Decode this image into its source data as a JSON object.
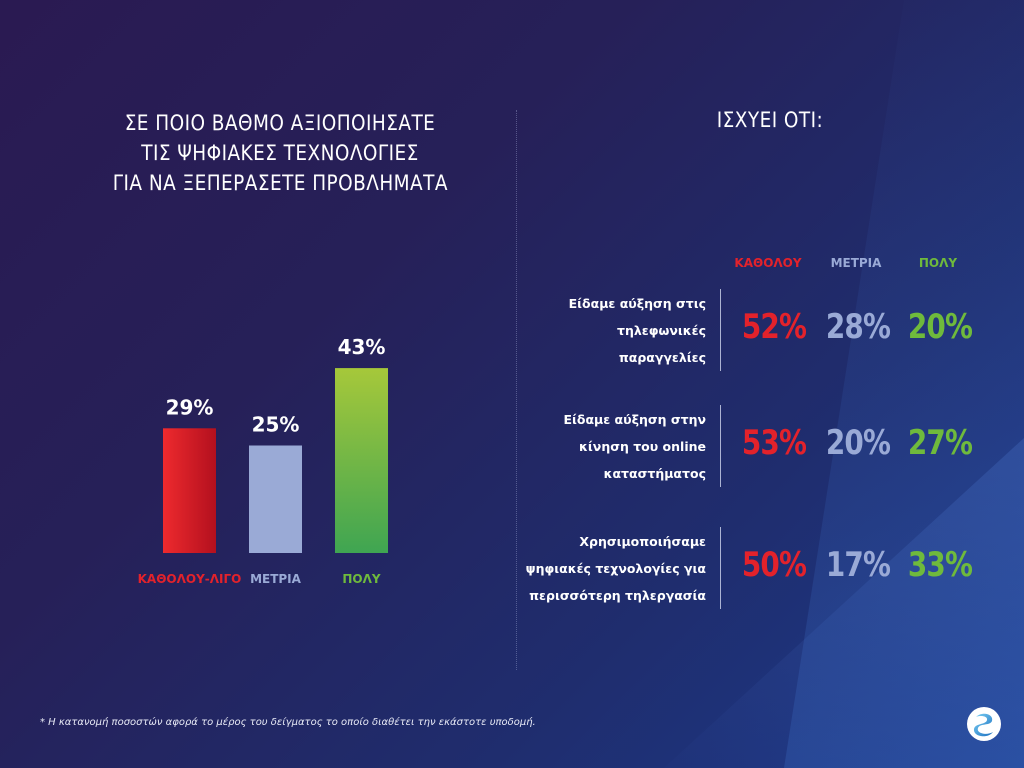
{
  "colors": {
    "red": "#e3222b",
    "lavender": "#9aaad6",
    "green": "#6fba3c",
    "red_bar_top": "#ee2a2e",
    "red_bar_bottom": "#b3101e",
    "green_bar_top": "#a6c83a",
    "green_bar_bottom": "#3fa552"
  },
  "left": {
    "title_lines": [
      "ΣΕ ΠΟΙΟ ΒΑΘΜΟ ΑΞΙΟΠΟΙΗΣΑΤΕ",
      "ΤΙΣ ΨΗΦΙΑΚΕΣ ΤΕΧΝΟΛΟΓΙΕΣ",
      "ΓΙΑ ΝΑ ΞΕΠΕΡΑΣΕΤΕ ΠΡΟΒΛΗΜΑΤΑ"
    ]
  },
  "chart_data": {
    "type": "bar",
    "title": "ΣΕ ΠΟΙΟ ΒΑΘΜΟ ΑΞΙΟΠΟΙΗΣΑΤΕ ΤΙΣ ΨΗΦΙΑΚΕΣ ΤΕΧΝΟΛΟΓΙΕΣ ΓΙΑ ΝΑ ΞΕΠΕΡΑΣΕΤΕ ΠΡΟΒΛΗΜΑΤΑ",
    "categories": [
      "ΚΑΘΟΛΟΥ-ΛΙΓΟ",
      "ΜΕΤΡΙΑ",
      "ΠΟΛΥ"
    ],
    "values": [
      29,
      25,
      43
    ],
    "value_labels": [
      "29%",
      "25%",
      "43%"
    ],
    "category_colors": [
      "#e3222b",
      "#9aaad6",
      "#6fba3c"
    ],
    "ylim": [
      0,
      50
    ],
    "grid": false,
    "xlabel": "",
    "ylabel": ""
  },
  "right": {
    "title": "ΙΣΧΥΕΙ ΟΤΙ:",
    "columns": [
      "ΚΑΘΟΛΟΥ",
      "ΜΕΤΡΙΑ",
      "ΠΟΛΥ"
    ],
    "rows": [
      {
        "label_lines": [
          "Είδαμε αύξηση στις",
          "τηλεφωνικές",
          "παραγγελίες"
        ],
        "values": [
          "52%",
          "28%",
          "20%"
        ]
      },
      {
        "label_lines": [
          "Είδαμε αύξηση στην",
          "κίνηση του online",
          "καταστήματος"
        ],
        "values": [
          "53%",
          "20%",
          "27%"
        ]
      },
      {
        "label_lines": [
          "Χρησιμοποιήσαμε",
          "ψηφιακές τεχνολογίες για",
          "περισσότερη τηλεργασία"
        ],
        "values": [
          "50%",
          "17%",
          "33%"
        ]
      }
    ]
  },
  "footnote": "* Η κατανομή ποσοστών αφορά το μέρος του δείγματος το οποίο διαθέτει την εκάστοτε υποδομή.",
  "icons": {
    "logo": "brand-logo-icon"
  }
}
